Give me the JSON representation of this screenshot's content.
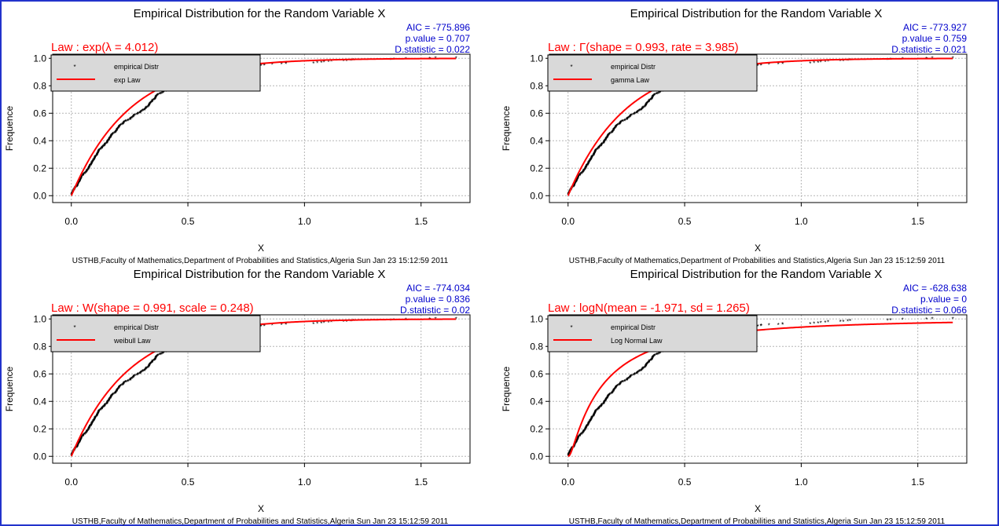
{
  "footer": "USTHB,Faculty of Mathematics,Department of Probabilities and Statistics,Algeria Sun Jan 23 15:12:59 2011",
  "colors": {
    "empirical": "#000000",
    "fitted": "#ff0000",
    "stats": "#0000cc",
    "law": "#ff0000",
    "legend_bg": "#d9d9d9"
  },
  "chart_data": [
    {
      "type": "scatter",
      "title": "Empirical Distribution for the Random Variable X",
      "law": "Law : exp(λ = 4.012)",
      "stats": [
        "AIC = -775.896",
        "p.value = 0.707",
        "D.statistic = 0.022"
      ],
      "xlabel": "X",
      "ylabel": "Frequence",
      "xlim": [
        -0.08,
        1.71
      ],
      "ylim": [
        -0.05,
        1.03
      ],
      "xticks": [
        "0.0",
        "0.5",
        "1.0",
        "1.5"
      ],
      "xtick_values": [
        0,
        0.5,
        1.0,
        1.5
      ],
      "yticks": [
        "0.0",
        "0.2",
        "0.4",
        "0.6",
        "0.8",
        "1.0"
      ],
      "ytick_values": [
        0,
        0.2,
        0.4,
        0.6,
        0.8,
        1.0
      ],
      "grid": true,
      "legend": [
        "empirical Distr",
        "exp Law"
      ],
      "legend_position": "top-left",
      "series": [
        {
          "name": "empirical Distr",
          "kind": "points",
          "x_max": 1.65
        },
        {
          "name": "exp Law",
          "kind": "line",
          "law": "exp",
          "params": {
            "rate": 4.012
          }
        }
      ]
    },
    {
      "type": "scatter",
      "title": "Empirical Distribution for the Random Variable X",
      "law": "Law : Γ(shape = 0.993, rate = 3.985)",
      "stats": [
        "AIC = -773.927",
        "p.value = 0.759",
        "D.statistic = 0.021"
      ],
      "xlabel": "X",
      "ylabel": "Frequence",
      "xlim": [
        -0.08,
        1.71
      ],
      "ylim": [
        -0.05,
        1.03
      ],
      "xticks": [
        "0.0",
        "0.5",
        "1.0",
        "1.5"
      ],
      "xtick_values": [
        0,
        0.5,
        1.0,
        1.5
      ],
      "yticks": [
        "0.0",
        "0.2",
        "0.4",
        "0.6",
        "0.8",
        "1.0"
      ],
      "ytick_values": [
        0,
        0.2,
        0.4,
        0.6,
        0.8,
        1.0
      ],
      "grid": true,
      "legend": [
        "empirical Distr",
        "gamma Law"
      ],
      "legend_position": "top-left",
      "series": [
        {
          "name": "empirical Distr",
          "kind": "points",
          "x_max": 1.65
        },
        {
          "name": "gamma Law",
          "kind": "line",
          "law": "gamma",
          "params": {
            "shape": 0.993,
            "rate": 3.985
          }
        }
      ]
    },
    {
      "type": "scatter",
      "title": "Empirical Distribution for the Random Variable X",
      "law": "Law : W(shape = 0.991, scale = 0.248)",
      "stats": [
        "AIC = -774.034",
        "p.value = 0.836",
        "D.statistic = 0.02"
      ],
      "xlabel": "X",
      "ylabel": "Frequence",
      "xlim": [
        -0.08,
        1.71
      ],
      "ylim": [
        -0.05,
        1.03
      ],
      "xticks": [
        "0.0",
        "0.5",
        "1.0",
        "1.5"
      ],
      "xtick_values": [
        0,
        0.5,
        1.0,
        1.5
      ],
      "yticks": [
        "0.0",
        "0.2",
        "0.4",
        "0.6",
        "0.8",
        "1.0"
      ],
      "ytick_values": [
        0,
        0.2,
        0.4,
        0.6,
        0.8,
        1.0
      ],
      "grid": true,
      "legend": [
        "empirical Distr",
        "weibull Law"
      ],
      "legend_position": "top-left",
      "series": [
        {
          "name": "empirical Distr",
          "kind": "points",
          "x_max": 1.65
        },
        {
          "name": "weibull Law",
          "kind": "line",
          "law": "weibull",
          "params": {
            "shape": 0.991,
            "scale": 0.248
          }
        }
      ]
    },
    {
      "type": "scatter",
      "title": "Empirical Distribution for the Random Variable X",
      "law": "Law : logN(mean = -1.971, sd = 1.265)",
      "stats": [
        "AIC = -628.638",
        "p.value = 0",
        "D.statistic = 0.066"
      ],
      "xlabel": "X",
      "ylabel": "Frequence",
      "xlim": [
        -0.08,
        1.71
      ],
      "ylim": [
        -0.05,
        1.03
      ],
      "xticks": [
        "0.0",
        "0.5",
        "1.0",
        "1.5"
      ],
      "xtick_values": [
        0,
        0.5,
        1.0,
        1.5
      ],
      "yticks": [
        "0.0",
        "0.2",
        "0.4",
        "0.6",
        "0.8",
        "1.0"
      ],
      "ytick_values": [
        0,
        0.2,
        0.4,
        0.6,
        0.8,
        1.0
      ],
      "grid": true,
      "legend": [
        "empirical Distr",
        "Log Normal Law"
      ],
      "legend_position": "top-left",
      "series": [
        {
          "name": "empirical Distr",
          "kind": "points",
          "x_max": 1.65
        },
        {
          "name": "Log Normal Law",
          "kind": "line",
          "law": "lognormal",
          "params": {
            "meanlog": -1.971,
            "sdlog": 1.265
          }
        }
      ]
    }
  ]
}
